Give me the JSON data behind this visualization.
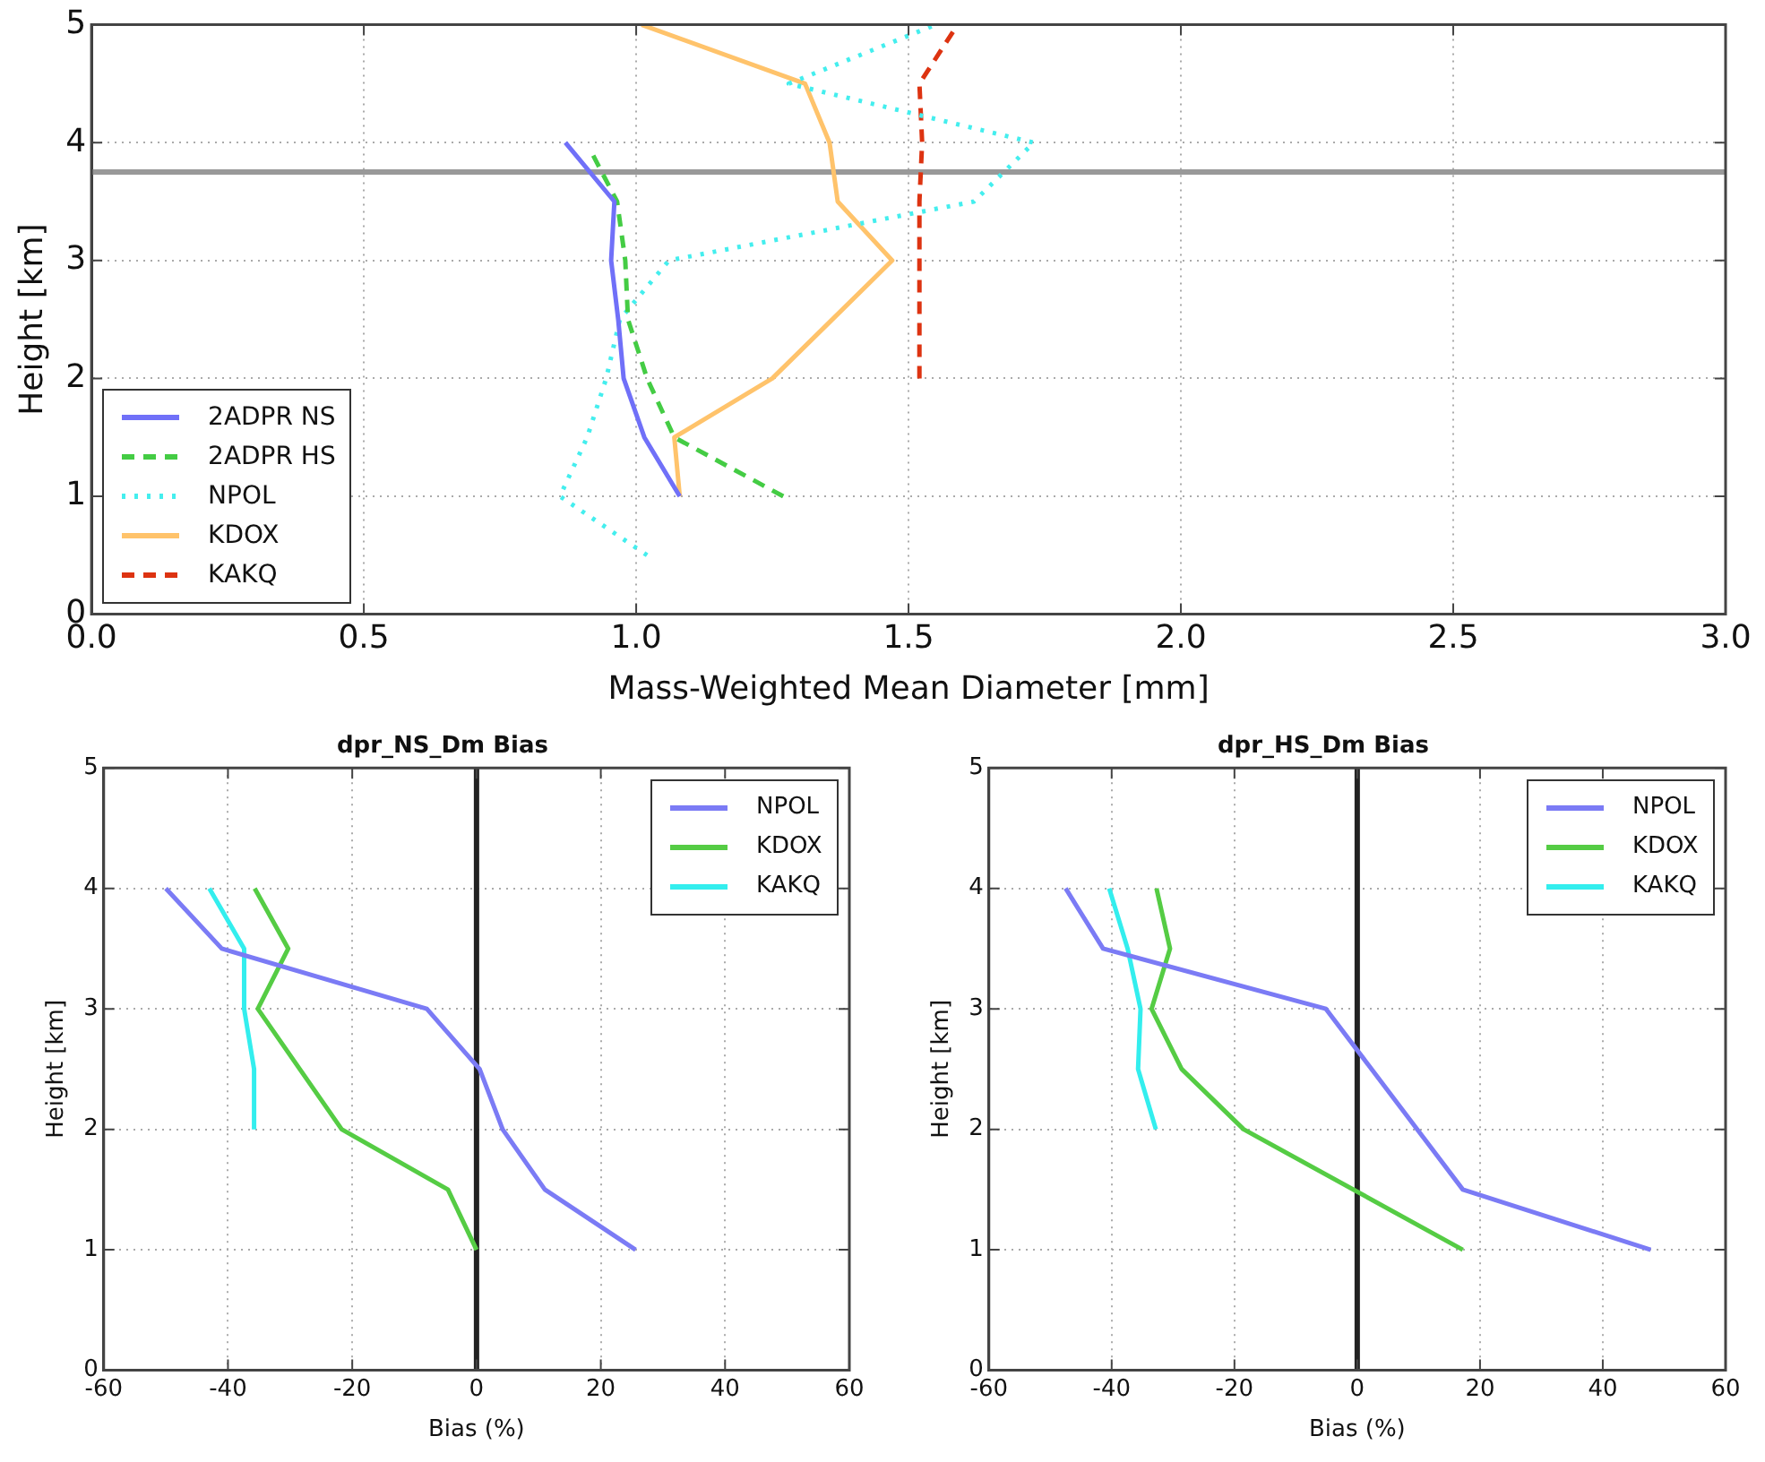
{
  "chart_data": [
    {
      "type": "line",
      "xlabel": "Mass-Weighted Mean Diameter [mm]",
      "ylabel": "Height [km]",
      "xlim": [
        0,
        3
      ],
      "ylim": [
        0,
        5
      ],
      "xticks": [
        {
          "value": 0,
          "label": "0.0"
        },
        0.5,
        {
          "value": 1,
          "label": "1.0"
        },
        1.5,
        {
          "value": 2,
          "label": "2.0"
        },
        2.5,
        {
          "value": 3,
          "label": "3.0"
        }
      ],
      "yticks": [
        0,
        1,
        2,
        3,
        4,
        5
      ],
      "grid": true,
      "legend": "bottom left",
      "ref_lines": [
        {
          "axis": "y",
          "value": 3.75,
          "color": "#999999"
        }
      ],
      "series": [
        {
          "name": "2ADPR NS",
          "color": "#7070f8",
          "line_style": "solid",
          "x": [
            1.08,
            1.015,
            0.977,
            0.967,
            0.954,
            0.96,
            0.87
          ],
          "values": [
            1,
            1.5,
            2,
            2.5,
            3,
            3.5,
            4
          ]
        },
        {
          "name": "2ADPR HS",
          "color": "#44cc44",
          "line_style": "dashed",
          "x": [
            1.27,
            1.07,
            1.02,
            0.985,
            0.98,
            0.965,
            0.92
          ],
          "values": [
            1,
            1.5,
            2,
            2.5,
            3,
            3.5,
            3.9
          ]
        },
        {
          "name": "NPOL",
          "color": "#44eeee",
          "line_style": "dotted",
          "x": [
            1.02,
            0.86,
            0.91,
            0.945,
            0.97,
            1.06,
            1.62,
            1.73,
            1.28,
            1.55
          ],
          "values": [
            0.5,
            1,
            1.5,
            2,
            2.5,
            3,
            3.5,
            4,
            4.5,
            5
          ]
        },
        {
          "name": "KDOX",
          "color": "#ffc36b",
          "line_style": "solid",
          "x": [
            1.08,
            1.07,
            1.25,
            1.36,
            1.47,
            1.37,
            1.355,
            1.31,
            1.01
          ],
          "values": [
            1,
            1.5,
            2,
            2.5,
            3,
            3.5,
            4,
            4.5,
            5
          ]
        },
        {
          "name": "KAKQ",
          "color": "#dd3311",
          "line_style": "dashed",
          "x": [
            1.52,
            1.52,
            1.52,
            1.52,
            1.525,
            1.52,
            1.59
          ],
          "values": [
            2,
            2.5,
            3,
            3.5,
            4,
            4.5,
            5
          ]
        }
      ]
    },
    {
      "type": "line",
      "title": "dpr_NS_Dm Bias",
      "xlabel": "Bias (%)",
      "ylabel": "Height [km]",
      "xlim": [
        -60,
        60
      ],
      "ylim": [
        0,
        5
      ],
      "xticks": [
        -60,
        -40,
        -20,
        0,
        20,
        40,
        60
      ],
      "yticks": [
        0,
        1,
        2,
        3,
        4,
        5
      ],
      "grid": true,
      "legend": "top right",
      "ref_lines": [
        {
          "axis": "x",
          "value": 0,
          "color": "#222222"
        }
      ],
      "series": [
        {
          "name": "NPOL",
          "color": "#7b7bf5",
          "line_style": "solid",
          "x": [
            25.6,
            11,
            4.2,
            0.5,
            -8,
            -41,
            -50
          ],
          "values": [
            1,
            1.5,
            2,
            2.5,
            3,
            3.5,
            4
          ]
        },
        {
          "name": "KDOX",
          "color": "#55cc44",
          "line_style": "solid",
          "x": [
            0,
            -4.6,
            -21.7,
            -35.2,
            -30.3,
            -35.7
          ],
          "values": [
            1,
            1.5,
            2,
            3,
            3.5,
            4
          ]
        },
        {
          "name": "KAKQ",
          "color": "#33eeee",
          "line_style": "solid",
          "x": [
            -35.8,
            -35.8,
            -37.4,
            -37.4,
            -43
          ],
          "values": [
            2,
            2.5,
            3,
            3.5,
            4
          ]
        }
      ]
    },
    {
      "type": "line",
      "title": "dpr_HS_Dm Bias",
      "xlabel": "Bias (%)",
      "ylabel": "Height [km]",
      "xlim": [
        -60,
        60
      ],
      "ylim": [
        0,
        5
      ],
      "xticks": [
        -60,
        -40,
        -20,
        0,
        20,
        40,
        60
      ],
      "yticks": [
        0,
        1,
        2,
        3,
        4,
        5
      ],
      "grid": true,
      "legend": "top right",
      "ref_lines": [
        {
          "axis": "x",
          "value": 0,
          "color": "#222222"
        }
      ],
      "series": [
        {
          "name": "NPOL",
          "color": "#7b7bf5",
          "line_style": "solid",
          "x": [
            47.8,
            17.2,
            -5.1,
            -41.4,
            -47.5
          ],
          "values": [
            1,
            1.5,
            3,
            3.5,
            4
          ]
        },
        {
          "name": "KDOX",
          "color": "#55cc44",
          "line_style": "solid",
          "x": [
            17.2,
            -18.5,
            -28.6,
            -33.5,
            -30.5,
            -32.7
          ],
          "values": [
            1,
            2,
            2.5,
            3,
            3.5,
            4
          ]
        },
        {
          "name": "KAKQ",
          "color": "#33eeee",
          "line_style": "solid",
          "x": [
            -32.8,
            -35.7,
            -35.3,
            -37.4,
            -40.4
          ],
          "values": [
            2,
            2.5,
            3,
            3.5,
            4
          ]
        }
      ]
    }
  ]
}
